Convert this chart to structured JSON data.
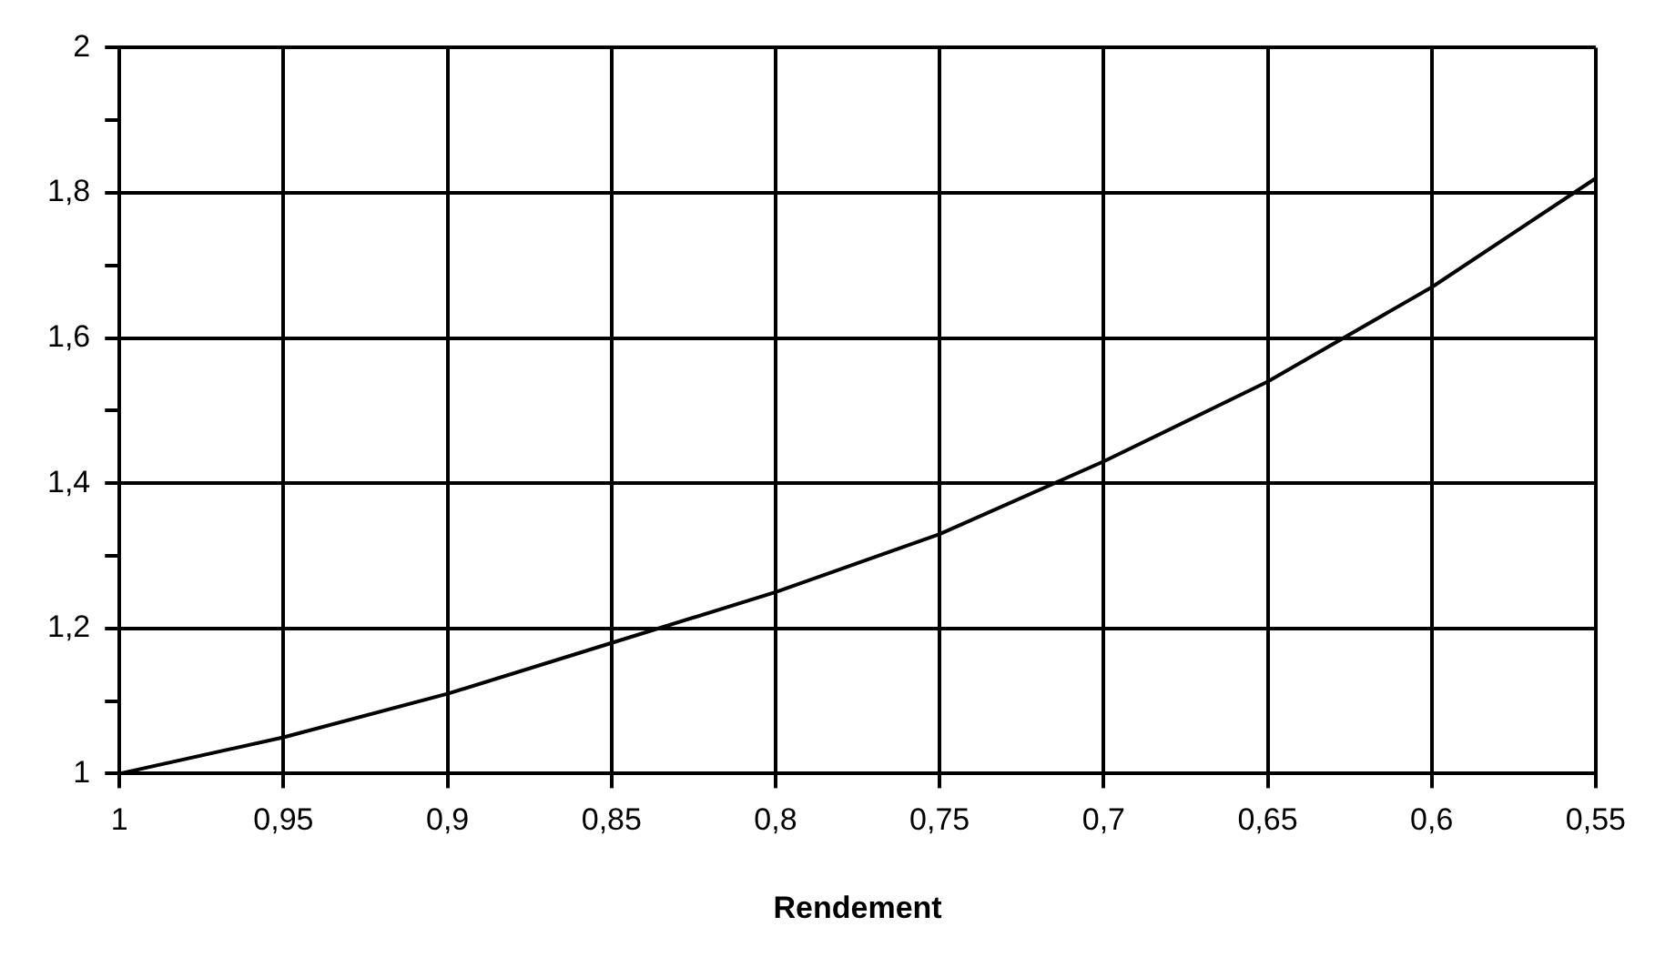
{
  "chart_data": {
    "type": "line",
    "xlabel": "Rendement",
    "x": [
      1,
      0.95,
      0.9,
      0.85,
      0.8,
      0.75,
      0.7,
      0.65,
      0.6,
      0.55
    ],
    "series": [
      {
        "color": "#000000",
        "values": [
          1,
          1.05,
          1.11,
          1.18,
          1.25,
          1.33,
          1.43,
          1.54,
          1.67,
          1.82
        ]
      }
    ],
    "xlim": [
      1,
      0.55
    ],
    "xticks": [
      1,
      {
        "value": 0.95,
        "label": "0,95"
      },
      {
        "value": 0.9,
        "label": "0,9"
      },
      {
        "value": 0.85,
        "label": "0,85"
      },
      {
        "value": 0.8,
        "label": "0,8"
      },
      {
        "value": 0.75,
        "label": "0,75"
      },
      {
        "value": 0.7,
        "label": "0,7"
      },
      {
        "value": 0.65,
        "label": "0,65"
      },
      {
        "value": 0.6,
        "label": "0,6"
      },
      {
        "value": 0.55,
        "label": "0,55"
      }
    ],
    "ylim": [
      1,
      2
    ],
    "yticks": [
      1,
      {
        "value": 1.1,
        "label": null
      },
      {
        "value": 1.2,
        "label": "1,2"
      },
      {
        "value": 1.3,
        "label": null
      },
      {
        "value": 1.4,
        "label": "1,4"
      },
      {
        "value": 1.5,
        "label": null
      },
      {
        "value": 1.6,
        "label": "1,6"
      },
      {
        "value": 1.7,
        "label": null
      },
      {
        "value": 1.8,
        "label": "1,8"
      },
      {
        "value": 1.9,
        "label": null
      },
      2
    ],
    "grid": true,
    "legend": false,
    "marker": "none",
    "line_style": "solid"
  }
}
